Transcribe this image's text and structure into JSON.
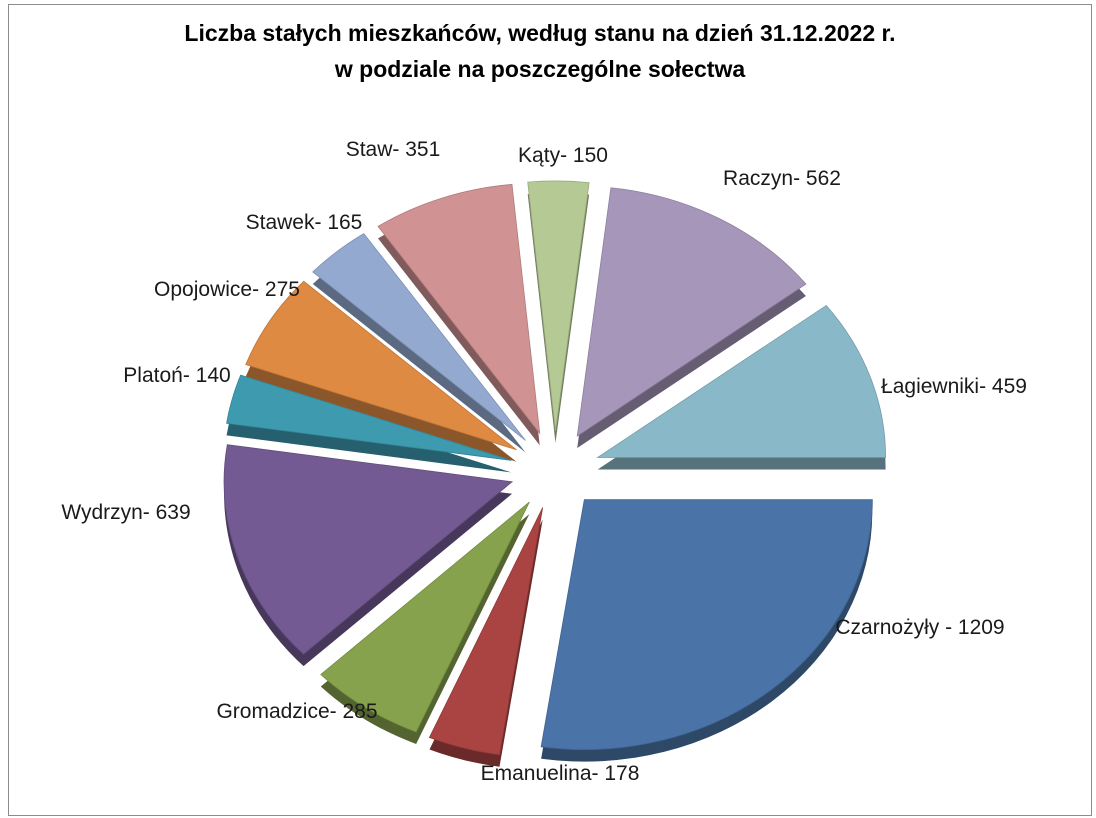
{
  "chart_data": {
    "type": "pie",
    "title": "Liczba stałych mieszkańców, według stanu na dzień 31.12.2022 r.",
    "subtitle": "w podziale na poszczególne sołectwa",
    "legend": "none",
    "slices": [
      {
        "label": "Czarnożyły - 1209",
        "name": "Czarnożyły",
        "value": 1209,
        "color": "#4a74a8"
      },
      {
        "label": "Emanuelina- 178",
        "name": "Emanuelina",
        "value": 178,
        "color": "#a94442"
      },
      {
        "label": "Gromadzice- 285",
        "name": "Gromadzice",
        "value": 285,
        "color": "#86a24d"
      },
      {
        "label": "Wydrzyn- 639",
        "name": "Wydrzyn",
        "value": 639,
        "color": "#735a93"
      },
      {
        "label": "Platoń- 140",
        "name": "Platoń",
        "value": 140,
        "color": "#3d9aaf"
      },
      {
        "label": "Opojowice- 275",
        "name": "Opojowice",
        "value": 275,
        "color": "#de8a43"
      },
      {
        "label": "Stawek- 165",
        "name": "Stawek",
        "value": 165,
        "color": "#93a9d0"
      },
      {
        "label": "Staw- 351",
        "name": "Staw",
        "value": 351,
        "color": "#d09292"
      },
      {
        "label": "Kąty- 150",
        "name": "Kąty",
        "value": 150,
        "color": "#b5c995"
      },
      {
        "label": "Raczyn- 562",
        "name": "Raczyn",
        "value": 562,
        "color": "#a596ba"
      },
      {
        "label": "Łagiewniki- 459",
        "name": "Łagiewniki",
        "value": 459,
        "color": "#89b8c9"
      }
    ]
  }
}
